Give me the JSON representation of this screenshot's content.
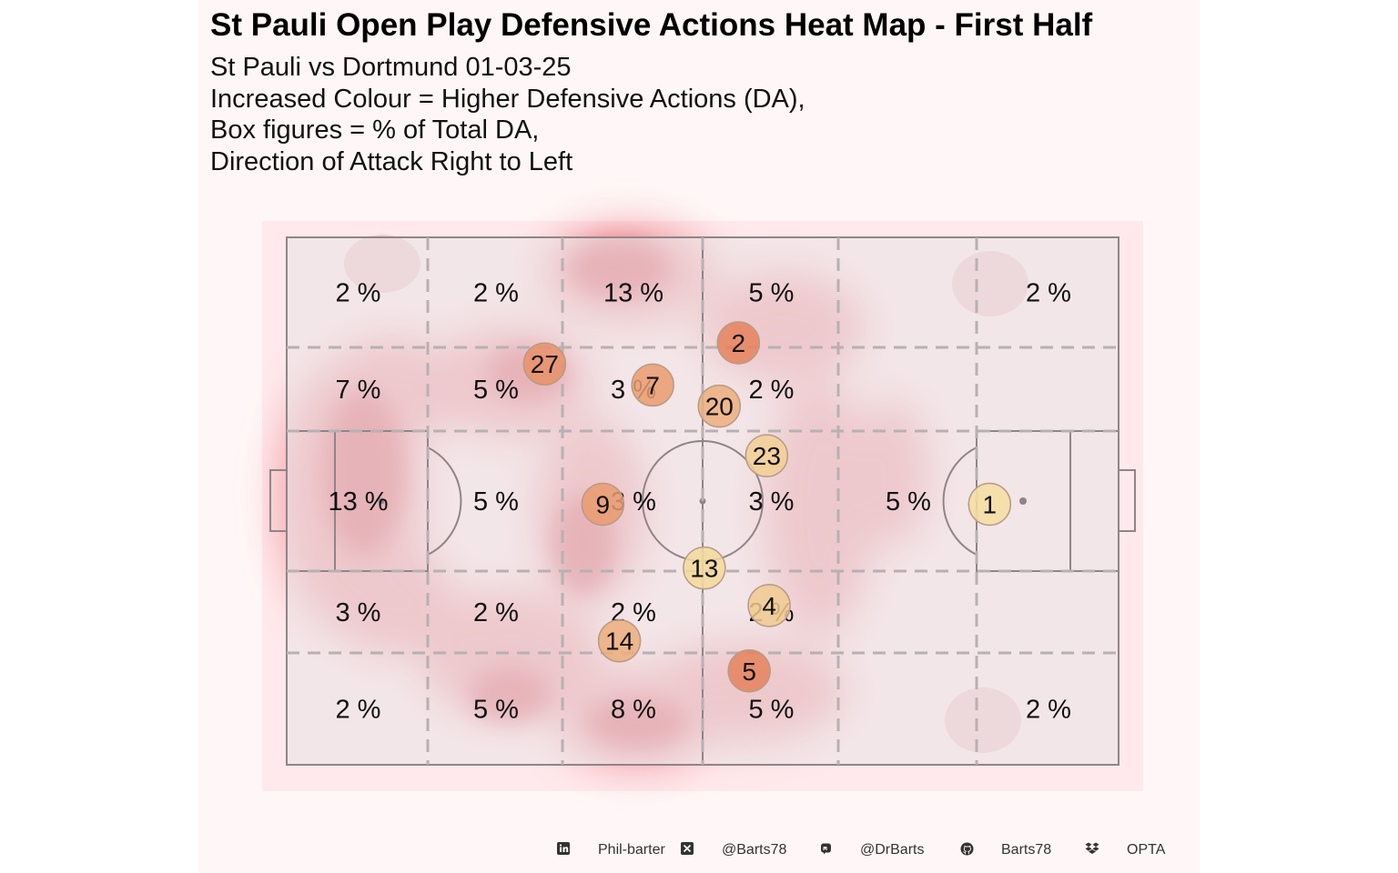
{
  "colors": {
    "background": "#fff7f7",
    "heat": "#e8727a",
    "pitch_lines": "#8f8587",
    "zone_lines": "#b8b0b2",
    "player_low": "#f5e2a2",
    "player_high": "#e5835d"
  },
  "chart_data": {
    "type": "heatmap",
    "title": "St Pauli Open Play Defensive Actions Heat Map - First Half",
    "subtitle": [
      "St Pauli vs Dortmund 01-03-25",
      "Increased Colour = Higher Defensive Actions (DA),",
      "Box figures = % of Total DA,",
      "Direction of Attack Right to Left"
    ],
    "zones": {
      "columns": 6,
      "rows": 5,
      "percent_labels": [
        [
          "2 %",
          "2 %",
          "13 %",
          "5 %",
          "",
          "2 %"
        ],
        [
          "7 %",
          "5 %",
          "3 %",
          "2 %",
          "",
          ""
        ],
        [
          "13 %",
          "5 %",
          "3 %",
          "3 %",
          "5 %",
          ""
        ],
        [
          "3 %",
          "2 %",
          "2 %",
          "2 %",
          "",
          ""
        ],
        [
          "2 %",
          "5 %",
          "8 %",
          "5 %",
          "",
          "2 %"
        ]
      ]
    },
    "players": [
      {
        "number": "27",
        "x": 31.0,
        "y": 76.0,
        "level": 0.85
      },
      {
        "number": "2",
        "x": 54.3,
        "y": 80.0,
        "level": 1.0
      },
      {
        "number": "7",
        "x": 44.0,
        "y": 72.0,
        "level": 0.75
      },
      {
        "number": "20",
        "x": 52.0,
        "y": 68.0,
        "level": 0.55
      },
      {
        "number": "23",
        "x": 57.7,
        "y": 58.6,
        "level": 0.2
      },
      {
        "number": "9",
        "x": 38.0,
        "y": 49.4,
        "level": 0.75
      },
      {
        "number": "1",
        "x": 84.5,
        "y": 49.4,
        "level": 0.05
      },
      {
        "number": "13",
        "x": 50.2,
        "y": 37.3,
        "level": 0.1
      },
      {
        "number": "4",
        "x": 58.0,
        "y": 30.2,
        "level": 0.25
      },
      {
        "number": "14",
        "x": 40.0,
        "y": 23.5,
        "level": 0.55
      },
      {
        "number": "5",
        "x": 55.6,
        "y": 17.8,
        "level": 1.0
      }
    ],
    "direction_of_attack": "right to left",
    "legend": "none"
  },
  "footer": {
    "items": [
      {
        "icon": "linkedin-icon",
        "label": "Phil-barter"
      },
      {
        "icon": "x-icon",
        "label": "@Barts78"
      },
      {
        "icon": "mastodon-icon",
        "label": "@DrBarts"
      },
      {
        "icon": "github-icon",
        "label": "Barts78"
      },
      {
        "icon": "dropbox-icon",
        "label": "OPTA"
      }
    ]
  }
}
